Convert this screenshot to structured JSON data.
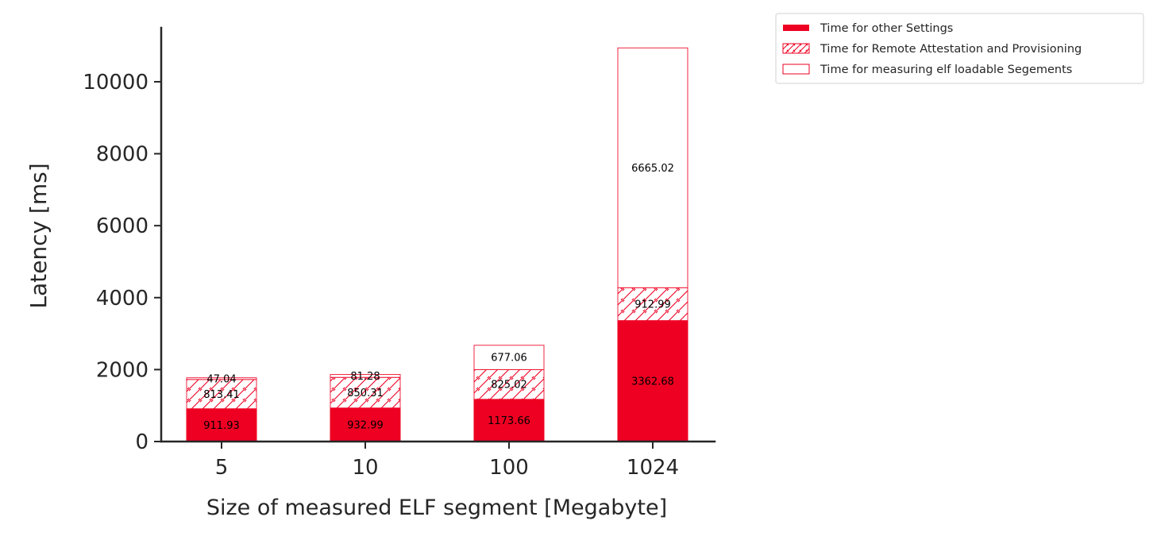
{
  "chart_data": {
    "type": "bar",
    "stacked": true,
    "title": "",
    "xlabel": "Size of measured ELF segment [Megabyte]",
    "ylabel": "Latency [ms]",
    "categories": [
      "5",
      "10",
      "100",
      "1024"
    ],
    "ylim": [
      0,
      11500
    ],
    "yticks": [
      0,
      2000,
      4000,
      6000,
      8000,
      10000
    ],
    "grid": false,
    "legend_position": "outside-top-right",
    "colors": {
      "accent": "#ee0022",
      "text": "#262626",
      "axis": "#262626"
    },
    "series": [
      {
        "name": "Time for other Settings",
        "style": "solid",
        "values": [
          911.93,
          932.99,
          1173.66,
          3362.68
        ],
        "labels": [
          "911.93",
          "932.99",
          "1173.66",
          "3362.68"
        ]
      },
      {
        "name": "Time for Remote Attestation and Provisioning",
        "style": "hatched",
        "values": [
          813.41,
          850.31,
          825.02,
          912.99
        ],
        "labels": [
          "813.41",
          "850.31",
          "825.02",
          "912.99"
        ]
      },
      {
        "name": "Time for measuring elf loadable Segements",
        "style": "outline",
        "values": [
          47.04,
          81.28,
          677.06,
          6665.02
        ],
        "labels": [
          "47.04",
          "81.28",
          "677.06",
          "6665.02"
        ]
      }
    ]
  }
}
